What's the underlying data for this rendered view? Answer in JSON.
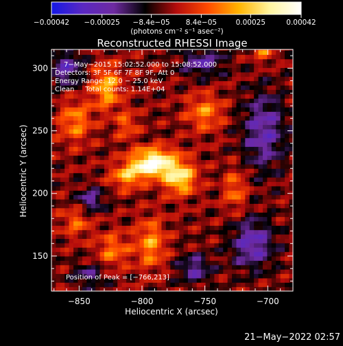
{
  "chart_data": {
    "type": "heatmap",
    "title": "Reconstructed RHESSI Image",
    "xlabel": "Heliocentric X (arcsec)",
    "ylabel": "Heliocentric Y (arcsec)",
    "xlim": [
      -872,
      -680
    ],
    "ylim": [
      122,
      315
    ],
    "x_ticks": [
      -850,
      -800,
      -750,
      -700
    ],
    "x_tick_labels": [
      "−850",
      "−800",
      "−750",
      "−700"
    ],
    "y_ticks": [
      150,
      200,
      250,
      300
    ],
    "y_tick_labels": [
      "150",
      "200",
      "250",
      "300"
    ],
    "grid": false,
    "colorbar": {
      "colormap": "black-red-yellow-white (IDL color table)",
      "range": [
        -0.00042,
        0.00042
      ],
      "ticks": [
        -0.00042,
        -0.00025,
        -8.4e-05,
        8.4e-05,
        0.00025,
        0.00042
      ],
      "tick_labels": [
        "−0.00042",
        "−0.00025",
        "−8.4e−05",
        "8.4e−05",
        "0.00025",
        "0.00042"
      ],
      "unit_label": "(photons cm⁻² s⁻¹ asec⁻²)",
      "stops": [
        "#1418e6",
        "#5a28c2",
        "#6e2aa0",
        "#000000",
        "#b40c0c",
        "#ff4a00",
        "#ffb400",
        "#fff5a0",
        "#ffffff"
      ]
    },
    "annotations": [
      "7−May−2015 15:02:52.000 to 15:08:52.000",
      "Detectors: 3F 5F 6F 7F 8F 9F, Att 0",
      "Energy Range: 12.0 − 25.0 keV",
      "Clean     Total counts: 1.14E+04"
    ],
    "peak_label": "Position of Peak = [−766,213]",
    "peak_position": [
      -766,
      213
    ],
    "total_counts": 11400,
    "footer_date": "21−May−2022 02:57",
    "field_components": [
      {
        "x": -792,
        "y": 222,
        "sx": 11,
        "sy": 6,
        "amp": 1.0
      },
      {
        "x": -770,
        "y": 213,
        "sx": 9,
        "sy": 9,
        "amp": 0.8
      },
      {
        "x": -812,
        "y": 214,
        "sx": 9,
        "sy": 7,
        "amp": 0.55
      },
      {
        "x": -790,
        "y": 232,
        "sx": 13,
        "sy": 5,
        "amp": 0.45
      },
      {
        "x": -828,
        "y": 285,
        "sx": 8,
        "sy": 12,
        "amp": 0.6
      },
      {
        "x": -853,
        "y": 258,
        "sx": 9,
        "sy": 12,
        "amp": 0.45
      },
      {
        "x": -793,
        "y": 160,
        "sx": 8,
        "sy": 14,
        "amp": 0.5
      },
      {
        "x": -823,
        "y": 155,
        "sx": 9,
        "sy": 10,
        "amp": 0.4
      },
      {
        "x": -750,
        "y": 265,
        "sx": 10,
        "sy": 10,
        "amp": 0.45
      },
      {
        "x": -726,
        "y": 203,
        "sx": 6,
        "sy": 12,
        "amp": 0.4
      },
      {
        "x": -852,
        "y": 178,
        "sx": 8,
        "sy": 9,
        "amp": 0.35
      },
      {
        "x": -812,
        "y": 255,
        "sx": 6,
        "sy": 8,
        "amp": 0.35
      },
      {
        "x": -703,
        "y": 312,
        "sx": 5,
        "sy": 5,
        "amp": 0.4
      },
      {
        "x": -758,
        "y": 140,
        "sx": 9,
        "sy": 8,
        "amp": -0.45
      },
      {
        "x": -712,
        "y": 160,
        "sx": 12,
        "sy": 14,
        "amp": -0.55
      },
      {
        "x": -703,
        "y": 250,
        "sx": 12,
        "sy": 22,
        "amp": -0.5
      },
      {
        "x": -860,
        "y": 300,
        "sx": 9,
        "sy": 10,
        "amp": -0.5
      },
      {
        "x": -841,
        "y": 195,
        "sx": 8,
        "sy": 7,
        "amp": -0.45
      },
      {
        "x": -752,
        "y": 305,
        "sx": 12,
        "sy": 8,
        "amp": -0.45
      },
      {
        "x": -842,
        "y": 135,
        "sx": 9,
        "sy": 7,
        "amp": -0.35
      }
    ],
    "field_baseline": -0.08,
    "field_texture": 0.24
  }
}
